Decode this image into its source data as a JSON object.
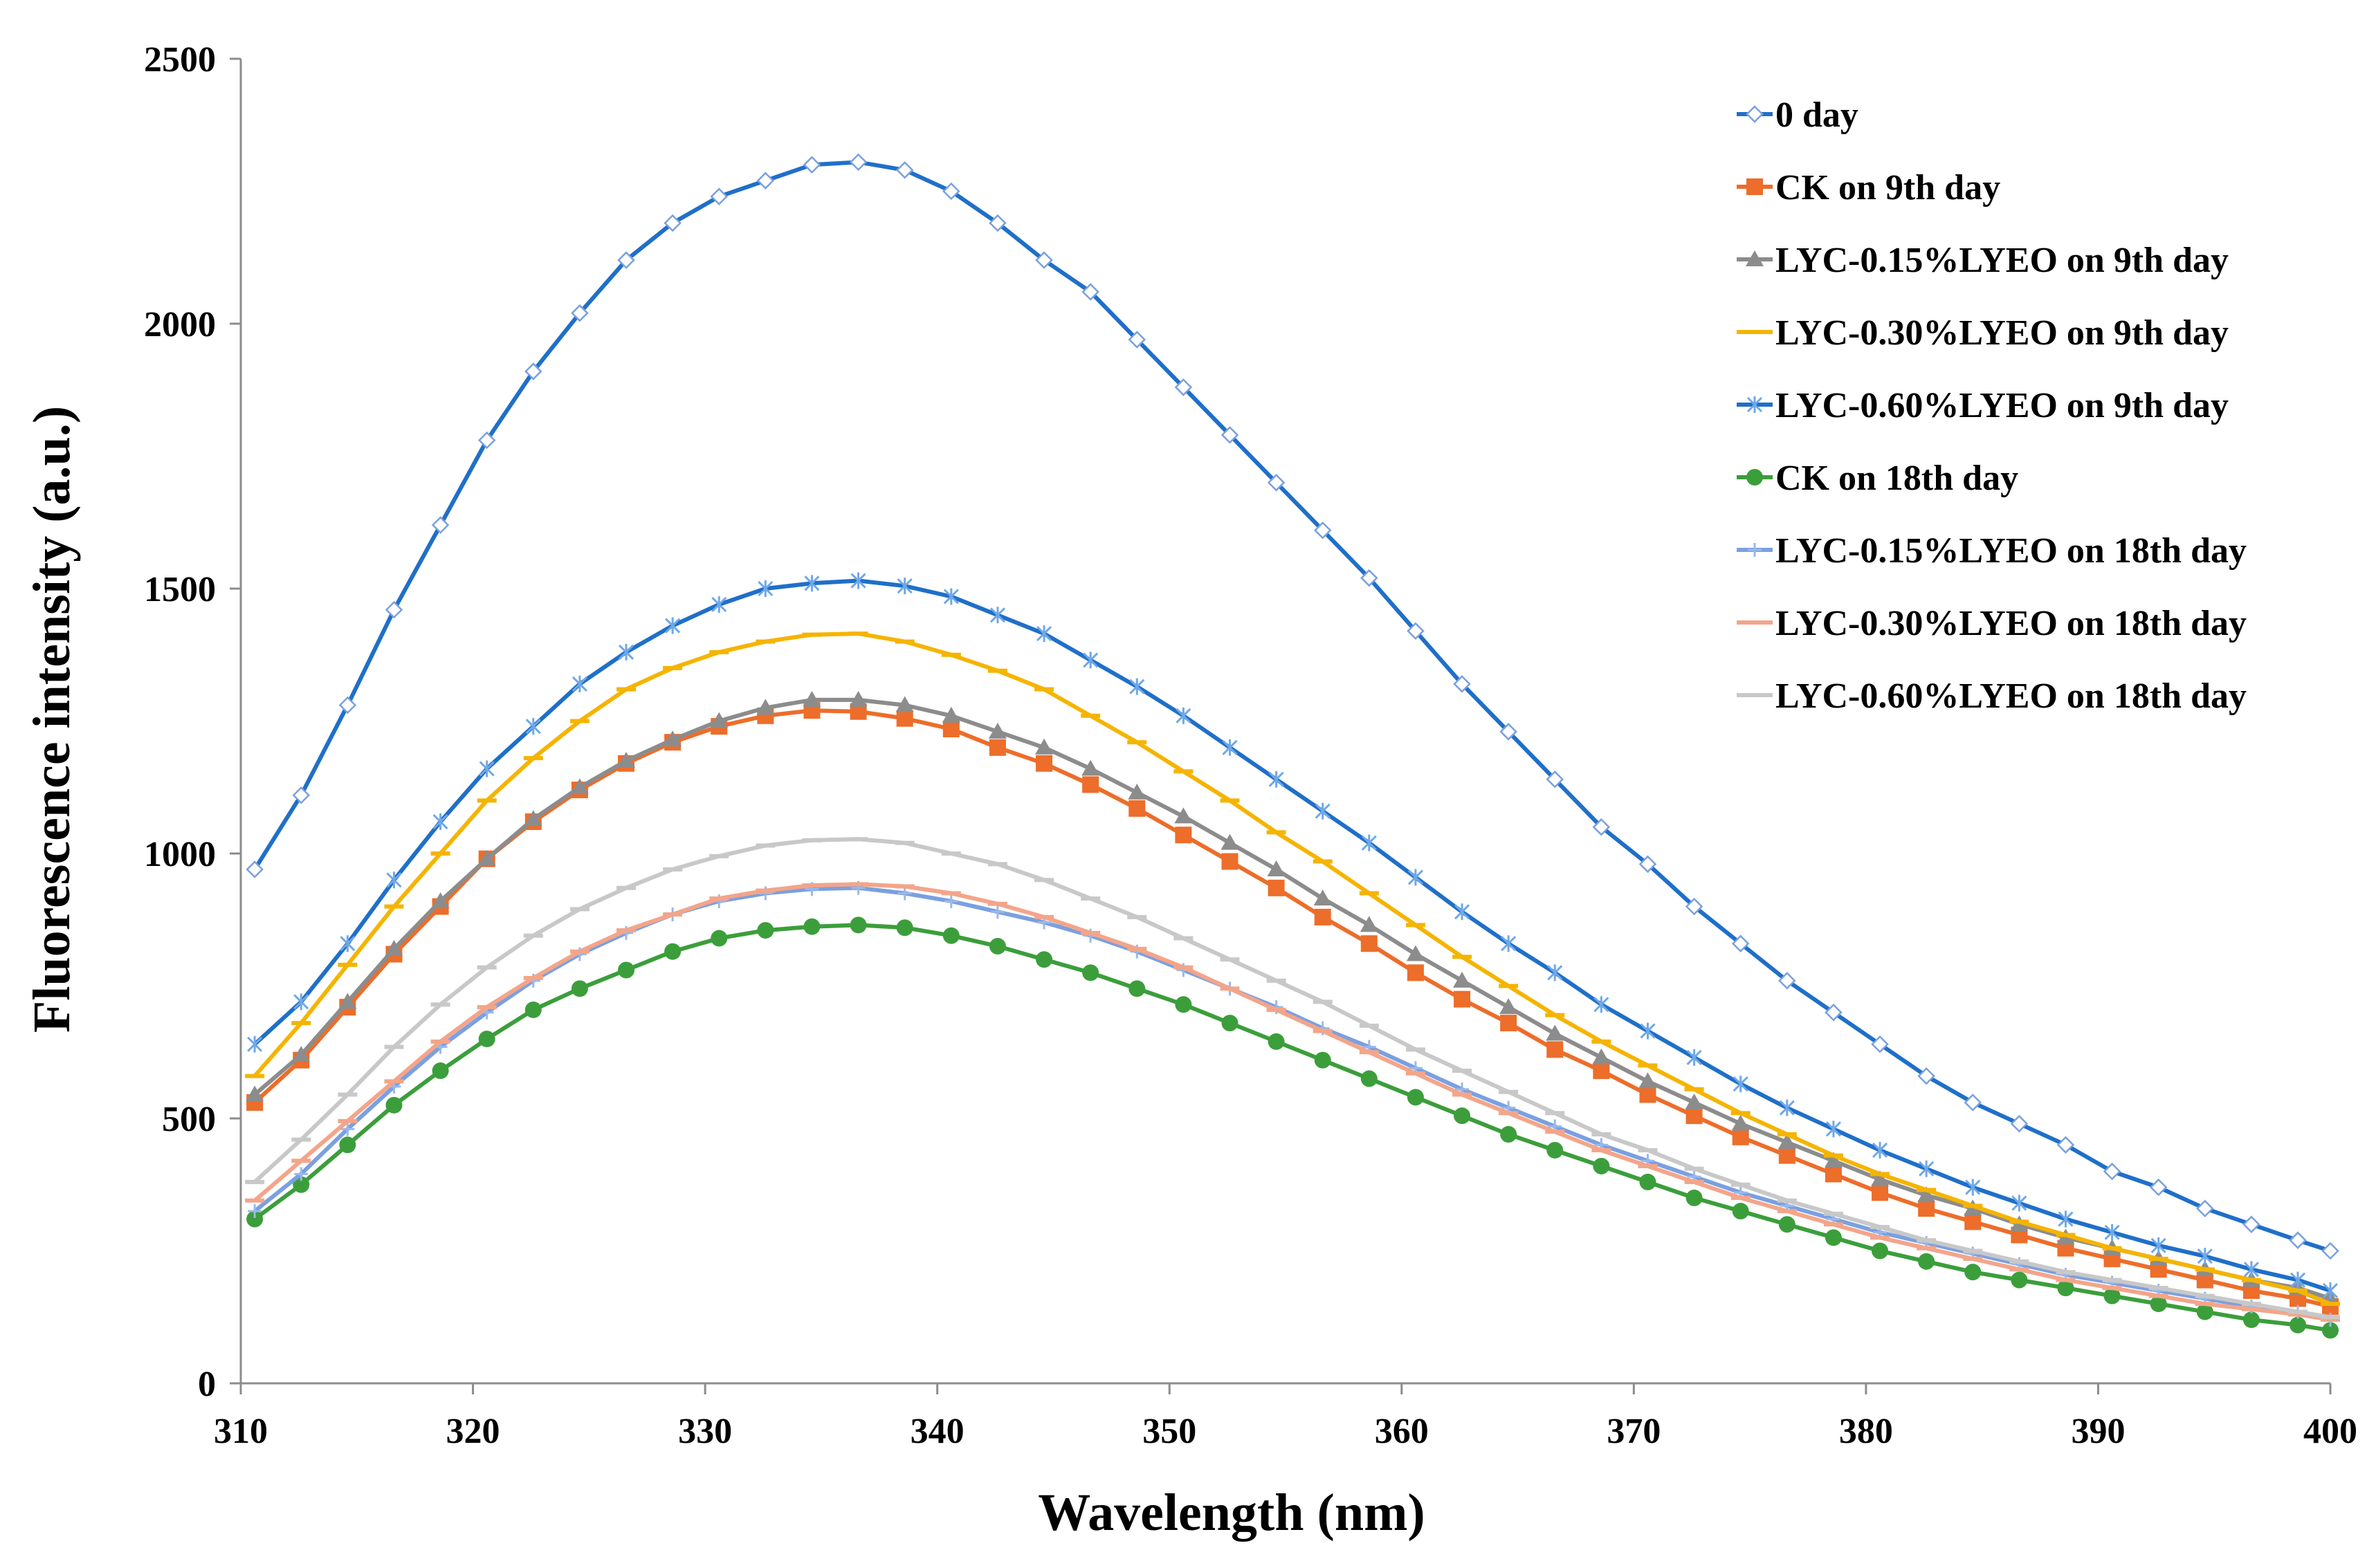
{
  "chart_data": {
    "type": "line",
    "title": "",
    "xlabel": "Wavelength (nm)",
    "ylabel": "Fluorescence intensity (a.u.)",
    "xlim": [
      310,
      400
    ],
    "ylim": [
      0,
      2500
    ],
    "xticks": [
      310,
      320,
      330,
      340,
      350,
      360,
      370,
      380,
      390,
      400
    ],
    "yticks": [
      0,
      500,
      1000,
      1500,
      2000,
      2500
    ],
    "grid": false,
    "legend_position": "top-right",
    "x": [
      310.6,
      312.6,
      314.6,
      316.6,
      318.6,
      320.6,
      322.6,
      324.6,
      326.6,
      328.6,
      330.6,
      332.6,
      334.6,
      336.6,
      338.6,
      340.6,
      342.6,
      344.6,
      346.6,
      348.6,
      350.6,
      352.6,
      354.6,
      356.6,
      358.6,
      360.6,
      362.6,
      364.6,
      366.6,
      368.6,
      370.6,
      372.6,
      374.6,
      376.6,
      378.6,
      380.6,
      382.6,
      384.6,
      386.6,
      388.6,
      390.6,
      392.6,
      394.6,
      396.6,
      398.6,
      400
    ],
    "series": [
      {
        "name": "0 day",
        "color": "#1f6fc9",
        "marker": "diamond-open",
        "values": [
          970,
          1110,
          1280,
          1460,
          1620,
          1780,
          1910,
          2020,
          2120,
          2190,
          2240,
          2270,
          2300,
          2305,
          2290,
          2250,
          2190,
          2120,
          2060,
          1970,
          1880,
          1790,
          1700,
          1610,
          1520,
          1420,
          1320,
          1230,
          1140,
          1050,
          980,
          900,
          830,
          760,
          700,
          640,
          580,
          530,
          490,
          450,
          400,
          370,
          330,
          300,
          270,
          250
        ]
      },
      {
        "name": "CK on 9th day",
        "color": "#ed6d2a",
        "marker": "square",
        "values": [
          530,
          610,
          710,
          810,
          900,
          990,
          1060,
          1120,
          1170,
          1210,
          1240,
          1260,
          1270,
          1268,
          1255,
          1235,
          1200,
          1170,
          1130,
          1085,
          1035,
          985,
          935,
          880,
          830,
          775,
          725,
          680,
          630,
          590,
          545,
          505,
          465,
          430,
          395,
          360,
          330,
          305,
          280,
          255,
          235,
          215,
          195,
          175,
          160,
          145
        ]
      },
      {
        "name": "LYC-0.15%LYEO on 9th day",
        "color": "#8c8c8c",
        "marker": "triangle",
        "values": [
          545,
          620,
          720,
          820,
          910,
          990,
          1065,
          1125,
          1175,
          1215,
          1250,
          1275,
          1290,
          1290,
          1280,
          1260,
          1230,
          1200,
          1160,
          1115,
          1070,
          1020,
          970,
          915,
          865,
          810,
          760,
          710,
          660,
          615,
          570,
          530,
          490,
          455,
          420,
          385,
          355,
          330,
          300,
          275,
          255,
          235,
          215,
          195,
          180,
          160
        ]
      },
      {
        "name": "LYC-0.30%LYEO on 9th day",
        "color": "#f5b400",
        "marker": "dash",
        "values": [
          580,
          680,
          790,
          900,
          1000,
          1100,
          1180,
          1250,
          1310,
          1350,
          1380,
          1400,
          1413,
          1415,
          1400,
          1375,
          1345,
          1310,
          1260,
          1210,
          1155,
          1100,
          1040,
          985,
          925,
          865,
          805,
          750,
          695,
          645,
          600,
          555,
          510,
          470,
          430,
          395,
          365,
          335,
          305,
          280,
          255,
          235,
          215,
          195,
          175,
          150
        ]
      },
      {
        "name": "LYC-0.60%LYEO on 9th day",
        "color": "#1f6fc9",
        "marker": "star",
        "values": [
          640,
          720,
          830,
          950,
          1060,
          1160,
          1240,
          1320,
          1380,
          1430,
          1470,
          1500,
          1510,
          1515,
          1505,
          1485,
          1450,
          1415,
          1365,
          1315,
          1260,
          1200,
          1140,
          1080,
          1020,
          955,
          890,
          830,
          775,
          715,
          665,
          615,
          565,
          520,
          480,
          440,
          405,
          370,
          340,
          310,
          285,
          260,
          240,
          215,
          195,
          175
        ]
      },
      {
        "name": "CK on 18th day",
        "color": "#3b9e3b",
        "marker": "circle",
        "values": [
          310,
          375,
          450,
          525,
          590,
          650,
          705,
          745,
          780,
          815,
          840,
          855,
          862,
          865,
          860,
          845,
          825,
          800,
          775,
          745,
          715,
          680,
          645,
          610,
          575,
          540,
          505,
          470,
          440,
          410,
          380,
          350,
          325,
          300,
          275,
          250,
          230,
          210,
          195,
          180,
          165,
          150,
          135,
          120,
          110,
          100
        ]
      },
      {
        "name": "LYC-0.15%LYEO on 18th day",
        "color": "#7aa0e0",
        "marker": "plus",
        "values": [
          325,
          395,
          480,
          560,
          635,
          700,
          760,
          810,
          850,
          885,
          910,
          925,
          933,
          935,
          925,
          910,
          890,
          870,
          845,
          815,
          780,
          745,
          710,
          670,
          635,
          595,
          555,
          520,
          485,
          450,
          420,
          390,
          360,
          335,
          310,
          285,
          265,
          245,
          225,
          205,
          190,
          175,
          160,
          145,
          135,
          120
        ]
      },
      {
        "name": "LYC-0.30%LYEO on 18th day",
        "color": "#f3a58a",
        "marker": "dash",
        "values": [
          345,
          420,
          495,
          570,
          645,
          710,
          765,
          815,
          855,
          885,
          915,
          930,
          940,
          942,
          938,
          925,
          905,
          880,
          850,
          820,
          785,
          745,
          705,
          665,
          625,
          585,
          545,
          510,
          475,
          440,
          410,
          380,
          350,
          325,
          300,
          275,
          255,
          235,
          215,
          195,
          180,
          165,
          150,
          140,
          130,
          120
        ]
      },
      {
        "name": "LYC-0.60%LYEO on 18th day",
        "color": "#c8c8c8",
        "marker": "dash",
        "values": [
          380,
          460,
          545,
          635,
          715,
          785,
          845,
          895,
          935,
          970,
          995,
          1015,
          1025,
          1027,
          1020,
          1000,
          980,
          950,
          915,
          880,
          840,
          800,
          760,
          720,
          675,
          630,
          590,
          550,
          510,
          470,
          440,
          405,
          375,
          345,
          320,
          295,
          270,
          250,
          230,
          210,
          195,
          180,
          165,
          150,
          135,
          125
        ]
      }
    ]
  }
}
